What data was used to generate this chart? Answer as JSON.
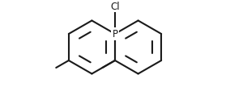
{
  "background_color": "#ffffff",
  "line_color": "#1a1a1a",
  "line_width": 1.5,
  "fig_width": 2.84,
  "fig_height": 1.34,
  "dpi": 100,
  "P_label": "P",
  "Cl_label": "Cl",
  "font_size": 8.5
}
